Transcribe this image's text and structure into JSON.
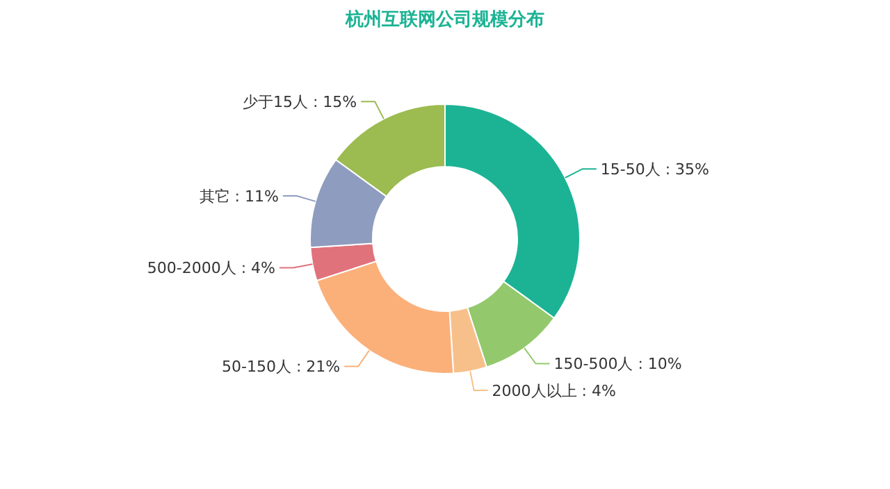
{
  "chart_data": {
    "type": "donut",
    "title": "杭州互联网公司规模分布",
    "categories": [
      "15-50人",
      "150-500人",
      "2000人以上",
      "50-150人",
      "500-2000人",
      "其它",
      "少于15人"
    ],
    "values": [
      35,
      10,
      4,
      21,
      4,
      11,
      15
    ],
    "value_labels": [
      "35%",
      "10%",
      "4%",
      "21%",
      "4%",
      "11%",
      "15%"
    ],
    "colors": [
      "#1bb394",
      "#93c96c",
      "#f7c08a",
      "#fbb07a",
      "#e0727c",
      "#8e9cbf",
      "#9cbb50"
    ],
    "legend": false
  }
}
